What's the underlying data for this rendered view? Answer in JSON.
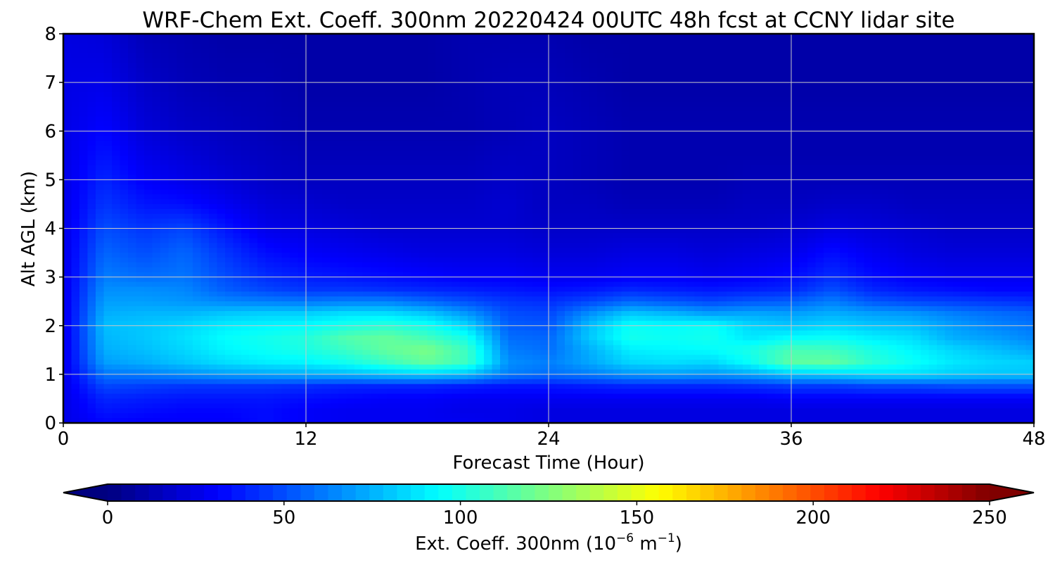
{
  "chart_data": {
    "type": "heatmap",
    "title": "WRF-Chem Ext. Coeff. 300nm  20220424 00UTC 48h fcst at CCNY lidar site",
    "xlabel": "Forecast Time (Hour)",
    "ylabel": "Alt AGL (km)",
    "xlim": [
      0,
      48
    ],
    "ylim": [
      0,
      8
    ],
    "xticks": [
      0,
      12,
      24,
      36,
      48
    ],
    "yticks": [
      0,
      1,
      2,
      3,
      4,
      5,
      6,
      7,
      8
    ],
    "grid": true,
    "x": [
      0,
      2,
      4,
      6,
      8,
      10,
      12,
      14,
      16,
      18,
      20,
      22,
      24,
      26,
      28,
      30,
      32,
      34,
      36,
      38,
      40,
      42,
      44,
      46,
      48
    ],
    "y": [
      0,
      0.25,
      0.5,
      0.75,
      1.0,
      1.25,
      1.5,
      1.75,
      2.0,
      2.25,
      2.5,
      2.75,
      3.0,
      3.5,
      4.0,
      4.5,
      5.0,
      5.5,
      6.0,
      7.0,
      8.0
    ],
    "values": [
      [
        25,
        32,
        30,
        30,
        30,
        34,
        30,
        28,
        28,
        28,
        28,
        26,
        24,
        24,
        24,
        24,
        24,
        24,
        24,
        24,
        24,
        24,
        24,
        24,
        24
      ],
      [
        25,
        36,
        34,
        32,
        32,
        34,
        30,
        28,
        28,
        28,
        26,
        26,
        24,
        24,
        24,
        24,
        24,
        24,
        24,
        24,
        24,
        24,
        24,
        24,
        24
      ],
      [
        25,
        40,
        38,
        36,
        36,
        36,
        34,
        32,
        30,
        30,
        28,
        28,
        28,
        28,
        28,
        28,
        28,
        28,
        30,
        30,
        30,
        30,
        30,
        30,
        30
      ],
      [
        25,
        48,
        46,
        44,
        44,
        44,
        42,
        40,
        40,
        40,
        38,
        36,
        36,
        38,
        40,
        40,
        40,
        42,
        45,
        45,
        48,
        48,
        50,
        50,
        50
      ],
      [
        25,
        60,
        62,
        66,
        70,
        72,
        74,
        76,
        80,
        82,
        78,
        62,
        58,
        62,
        68,
        70,
        68,
        72,
        80,
        82,
        86,
        86,
        82,
        80,
        80
      ],
      [
        25,
        70,
        74,
        80,
        86,
        90,
        92,
        98,
        108,
        118,
        108,
        66,
        62,
        72,
        84,
        86,
        84,
        96,
        116,
        118,
        104,
        96,
        88,
        84,
        82
      ],
      [
        25,
        74,
        78,
        84,
        92,
        96,
        100,
        108,
        118,
        124,
        108,
        62,
        58,
        74,
        90,
        92,
        94,
        100,
        112,
        110,
        100,
        92,
        84,
        78,
        72
      ],
      [
        25,
        76,
        80,
        86,
        94,
        98,
        102,
        114,
        118,
        110,
        98,
        58,
        56,
        80,
        98,
        96,
        98,
        88,
        94,
        96,
        90,
        86,
        74,
        70,
        64
      ],
      [
        25,
        78,
        80,
        84,
        90,
        92,
        94,
        100,
        104,
        98,
        84,
        54,
        52,
        78,
        96,
        94,
        96,
        84,
        80,
        84,
        80,
        78,
        70,
        64,
        60
      ],
      [
        25,
        74,
        76,
        76,
        80,
        82,
        82,
        86,
        86,
        80,
        68,
        50,
        48,
        66,
        80,
        76,
        70,
        72,
        70,
        74,
        70,
        68,
        62,
        58,
        55
      ],
      [
        25,
        70,
        70,
        68,
        64,
        62,
        60,
        62,
        62,
        56,
        50,
        44,
        42,
        48,
        56,
        52,
        48,
        52,
        54,
        62,
        52,
        48,
        46,
        44,
        42
      ],
      [
        25,
        66,
        66,
        64,
        54,
        48,
        44,
        44,
        42,
        40,
        38,
        36,
        34,
        36,
        40,
        38,
        36,
        38,
        40,
        50,
        40,
        36,
        34,
        32,
        32
      ],
      [
        25,
        62,
        58,
        60,
        50,
        42,
        38,
        36,
        34,
        32,
        30,
        30,
        28,
        28,
        30,
        30,
        28,
        30,
        34,
        42,
        34,
        30,
        28,
        28,
        28
      ],
      [
        25,
        56,
        50,
        56,
        44,
        34,
        30,
        28,
        26,
        24,
        24,
        24,
        22,
        22,
        24,
        24,
        22,
        24,
        26,
        34,
        28,
        24,
        22,
        22,
        22
      ],
      [
        25,
        50,
        44,
        48,
        36,
        26,
        24,
        22,
        20,
        20,
        20,
        20,
        18,
        18,
        18,
        18,
        18,
        18,
        20,
        24,
        22,
        20,
        18,
        18,
        18
      ],
      [
        25,
        44,
        36,
        34,
        28,
        22,
        20,
        18,
        18,
        18,
        18,
        20,
        16,
        16,
        14,
        14,
        14,
        16,
        16,
        18,
        18,
        16,
        16,
        16,
        16
      ],
      [
        25,
        40,
        30,
        26,
        22,
        18,
        16,
        16,
        16,
        16,
        16,
        18,
        16,
        14,
        12,
        12,
        12,
        14,
        14,
        14,
        14,
        14,
        14,
        14,
        14
      ],
      [
        25,
        36,
        26,
        22,
        18,
        16,
        14,
        14,
        14,
        14,
        14,
        16,
        16,
        14,
        12,
        12,
        12,
        12,
        12,
        12,
        12,
        12,
        12,
        12,
        12
      ],
      [
        25,
        32,
        22,
        18,
        16,
        14,
        12,
        12,
        12,
        12,
        12,
        14,
        16,
        14,
        12,
        12,
        12,
        12,
        12,
        12,
        12,
        12,
        12,
        12,
        12
      ],
      [
        25,
        26,
        18,
        14,
        12,
        12,
        10,
        10,
        10,
        10,
        12,
        14,
        14,
        12,
        10,
        10,
        10,
        10,
        10,
        10,
        10,
        10,
        10,
        10,
        10
      ],
      [
        24,
        22,
        14,
        12,
        10,
        10,
        10,
        10,
        10,
        10,
        12,
        12,
        12,
        10,
        10,
        10,
        10,
        10,
        10,
        10,
        10,
        10,
        10,
        10,
        10
      ]
    ],
    "colorbar": {
      "label_main": "Ext. Coeff. 300nm  (10",
      "label_exp1": "−6",
      "label_mid": " m",
      "label_exp2": "−1",
      "label_end": ")",
      "min": 0,
      "max": 250,
      "ticks": [
        0,
        50,
        100,
        150,
        200,
        250
      ],
      "extend": "both",
      "colormap": "jet"
    }
  }
}
